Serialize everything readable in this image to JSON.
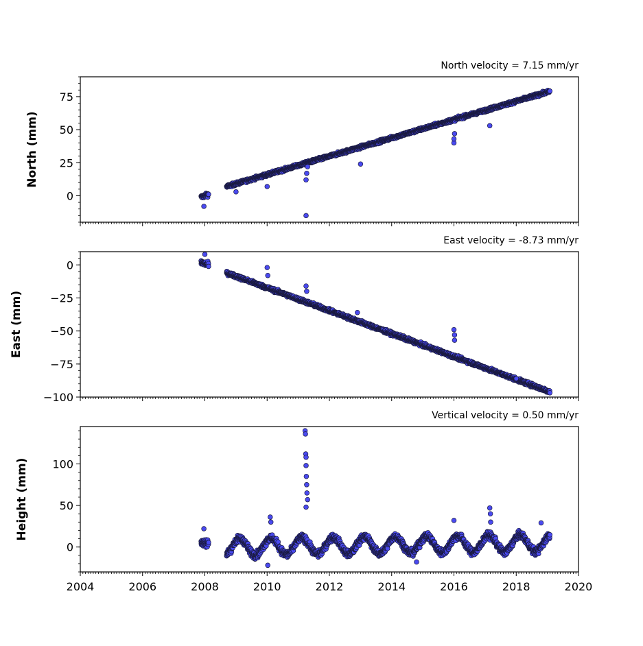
{
  "chart_data": [
    {
      "type": "scatter",
      "velocity_label": "North velocity = 7.15 mm/yr",
      "ylabel": "North (mm)",
      "xlim": [
        2004,
        2020
      ],
      "ylim": [
        -20,
        90
      ],
      "yticks": [
        0,
        25,
        50,
        75
      ],
      "ytick_labels": [
        "0",
        "25",
        "50",
        "75"
      ],
      "marker_color": "#4a4af0",
      "series": [
        {
          "segments": [
            {
              "x0": 2007.88,
              "x1": 2008.12,
              "y0": -1,
              "y1": 1,
              "noise": 2.0
            },
            {
              "x0": 2008.7,
              "x1": 2019.08,
              "y0": 7,
              "y1": 79,
              "noise": 1.6
            }
          ],
          "outliers": [
            [
              2011.25,
              -15
            ],
            [
              2011.25,
              12
            ],
            [
              2011.27,
              17
            ],
            [
              2011.3,
              22
            ],
            [
              2013.0,
              24
            ],
            [
              2016.0,
              40
            ],
            [
              2016.0,
              43
            ],
            [
              2016.02,
              47
            ],
            [
              2017.15,
              53
            ],
            [
              2010.0,
              7
            ],
            [
              2009.0,
              3
            ],
            [
              2007.97,
              -8
            ]
          ]
        }
      ]
    },
    {
      "type": "scatter",
      "velocity_label": "East velocity = -8.73 mm/yr",
      "ylabel": "East (mm)",
      "xlim": [
        2004,
        2020
      ],
      "ylim": [
        -100,
        10
      ],
      "yticks": [
        -100,
        -75,
        -50,
        -25,
        0
      ],
      "ytick_labels": [
        "−100",
        "−75",
        "−50",
        "−25",
        "0"
      ],
      "marker_color": "#4a4af0",
      "series": [
        {
          "segments": [
            {
              "x0": 2007.88,
              "x1": 2008.12,
              "y0": 2,
              "y1": 0,
              "noise": 2.5
            },
            {
              "x0": 2008.7,
              "x1": 2019.08,
              "y0": -6,
              "y1": -96,
              "noise": 1.8
            }
          ],
          "outliers": [
            [
              2008.0,
              8
            ],
            [
              2010.0,
              -2
            ],
            [
              2010.02,
              -8
            ],
            [
              2011.25,
              -16
            ],
            [
              2011.27,
              -20
            ],
            [
              2012.9,
              -36
            ],
            [
              2016.0,
              -49
            ],
            [
              2016.02,
              -53
            ],
            [
              2016.02,
              -57
            ],
            [
              2018.0,
              -86
            ]
          ]
        }
      ]
    },
    {
      "type": "scatter",
      "velocity_label": "Vertical velocity = 0.50 mm/yr",
      "ylabel": "Height (mm)",
      "xlim": [
        2004,
        2020
      ],
      "ylim": [
        -30,
        145
      ],
      "yticks": [
        0,
        50,
        100
      ],
      "ytick_labels": [
        "0",
        "50",
        "100"
      ],
      "xticks": [
        2004,
        2006,
        2008,
        2010,
        2012,
        2014,
        2016,
        2018,
        2020
      ],
      "xtick_labels": [
        "2004",
        "2006",
        "2008",
        "2010",
        "2012",
        "2014",
        "2016",
        "2018",
        "2020"
      ],
      "marker_color": "#4a4af0",
      "series": [
        {
          "segments": [
            {
              "x0": 2007.88,
              "x1": 2008.12,
              "y0": 5,
              "y1": 5,
              "noise": 7,
              "seasonal": 0
            },
            {
              "x0": 2008.7,
              "x1": 2019.08,
              "y0": 0,
              "y1": 5,
              "noise": 6,
              "seasonal": 10
            }
          ],
          "outliers": [
            [
              2011.22,
              140
            ],
            [
              2011.23,
              136
            ],
            [
              2011.24,
              112
            ],
            [
              2011.25,
              108
            ],
            [
              2011.25,
              98
            ],
            [
              2011.26,
              85
            ],
            [
              2011.27,
              75
            ],
            [
              2011.28,
              65
            ],
            [
              2011.3,
              57
            ],
            [
              2011.25,
              48
            ],
            [
              2010.1,
              36
            ],
            [
              2010.12,
              30
            ],
            [
              2017.15,
              47
            ],
            [
              2017.17,
              40
            ],
            [
              2017.18,
              30
            ],
            [
              2014.8,
              -18
            ],
            [
              2016.0,
              32
            ],
            [
              2010.02,
              -22
            ],
            [
              2018.8,
              29
            ],
            [
              2007.97,
              22
            ]
          ]
        }
      ]
    }
  ]
}
